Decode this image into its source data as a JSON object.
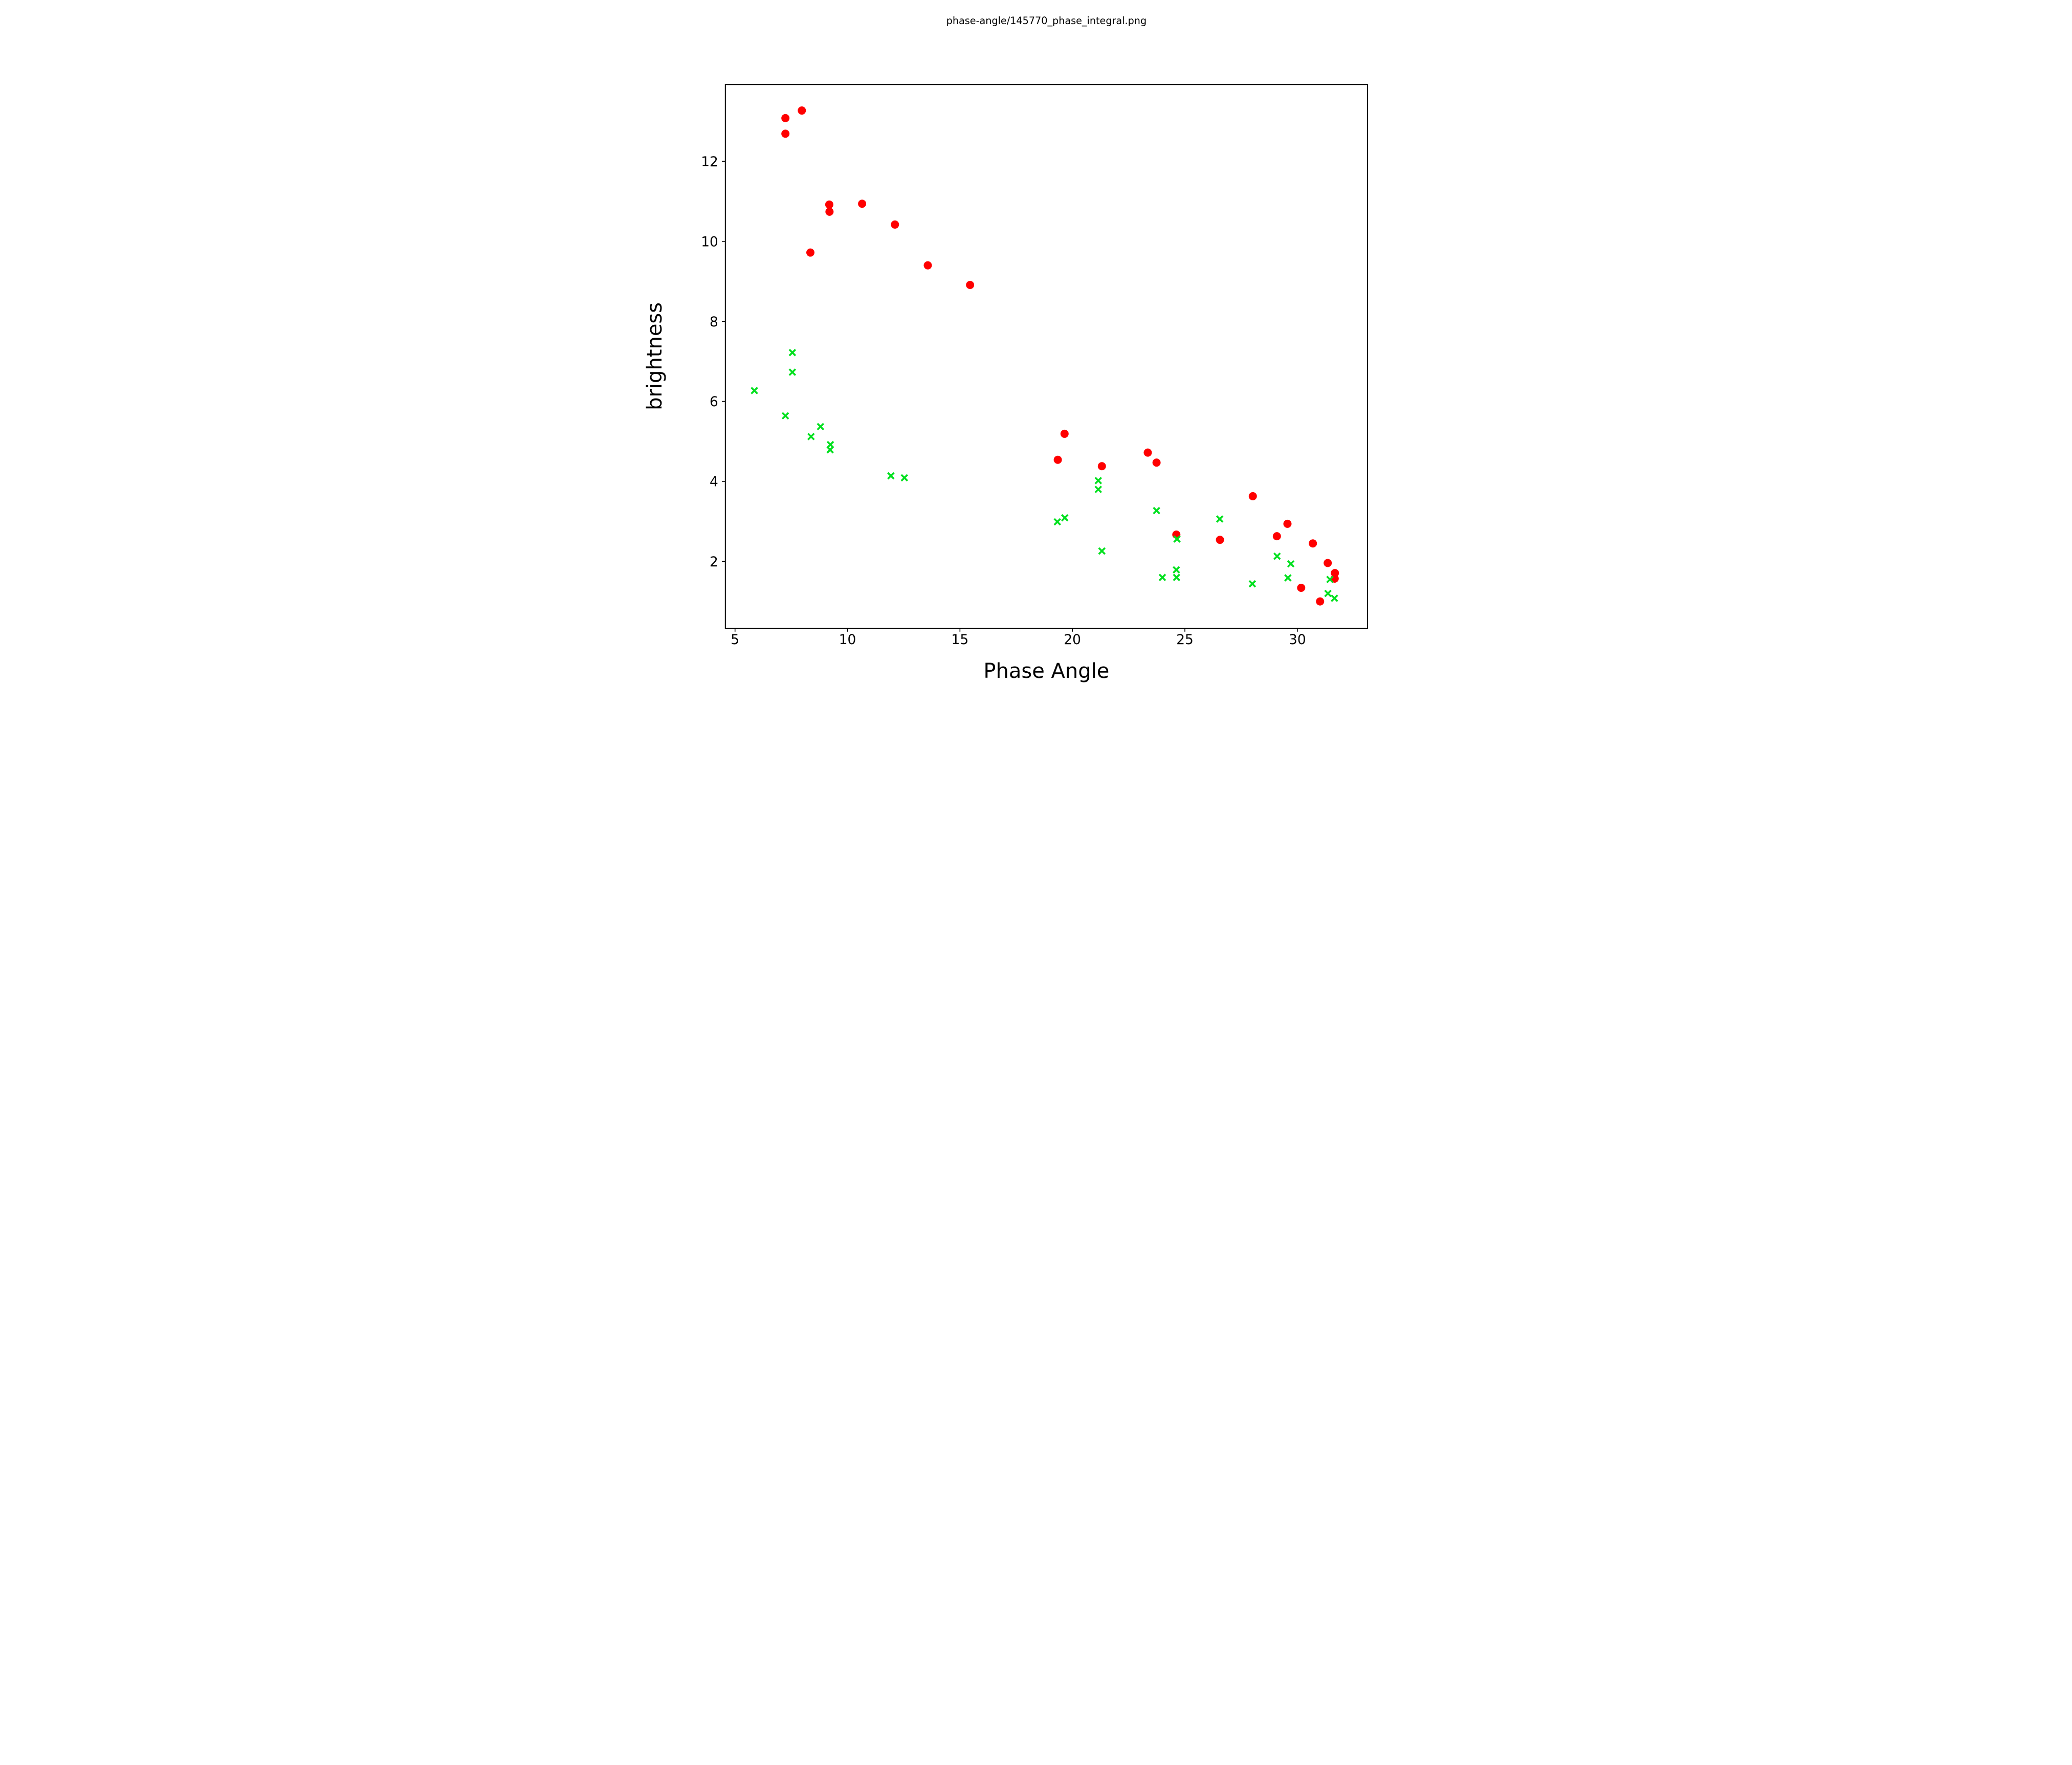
{
  "figure": {
    "title": "phase-angle/145770_phase_integral.png",
    "background_color": "#ffffff",
    "axis_color": "#000000"
  },
  "chart_data": {
    "type": "scatter",
    "title": "phase-angle/145770_phase_integral.png",
    "xlabel": "Phase Angle",
    "ylabel": "brightness",
    "xlim": [
      4.57,
      33.12
    ],
    "ylim": [
      0.33,
      13.92
    ],
    "x_ticks": [
      5,
      10,
      15,
      20,
      25,
      30
    ],
    "y_ticks": [
      2,
      4,
      6,
      8,
      10,
      12
    ],
    "grid": false,
    "legend_position": "none",
    "series": [
      {
        "name": "red-filled-circles",
        "marker": "circle",
        "color": "#ff0000",
        "points": [
          [
            7.24,
            13.08
          ],
          [
            7.24,
            12.69
          ],
          [
            7.97,
            13.27
          ],
          [
            8.35,
            9.72
          ],
          [
            9.19,
            10.92
          ],
          [
            9.2,
            10.74
          ],
          [
            10.65,
            10.94
          ],
          [
            12.11,
            10.42
          ],
          [
            13.57,
            9.4
          ],
          [
            15.45,
            8.91
          ],
          [
            19.65,
            5.19
          ],
          [
            19.35,
            4.54
          ],
          [
            21.31,
            4.38
          ],
          [
            23.35,
            4.72
          ],
          [
            23.74,
            4.47
          ],
          [
            24.62,
            2.67
          ],
          [
            26.56,
            2.54
          ],
          [
            28.02,
            3.63
          ],
          [
            29.56,
            2.94
          ],
          [
            29.09,
            2.63
          ],
          [
            30.69,
            2.45
          ],
          [
            31.35,
            1.96
          ],
          [
            31.67,
            1.71
          ],
          [
            31.66,
            1.57
          ],
          [
            30.17,
            1.34
          ],
          [
            31.01,
            1.0
          ]
        ]
      },
      {
        "name": "green-x-crosses",
        "marker": "x",
        "color": "#00e01e",
        "points": [
          [
            5.86,
            6.27
          ],
          [
            7.55,
            7.22
          ],
          [
            7.55,
            6.73
          ],
          [
            7.24,
            5.64
          ],
          [
            8.8,
            5.37
          ],
          [
            8.38,
            5.12
          ],
          [
            9.24,
            4.92
          ],
          [
            9.23,
            4.79
          ],
          [
            11.93,
            4.14
          ],
          [
            12.53,
            4.09
          ],
          [
            19.66,
            3.09
          ],
          [
            19.33,
            2.99
          ],
          [
            21.15,
            4.02
          ],
          [
            21.15,
            3.8
          ],
          [
            21.31,
            2.26
          ],
          [
            23.74,
            3.27
          ],
          [
            24.65,
            2.56
          ],
          [
            24.62,
            1.79
          ],
          [
            24.0,
            1.6
          ],
          [
            24.63,
            1.6
          ],
          [
            26.55,
            3.06
          ],
          [
            28.0,
            1.44
          ],
          [
            29.1,
            2.13
          ],
          [
            29.71,
            1.94
          ],
          [
            29.58,
            1.59
          ],
          [
            31.45,
            1.55
          ],
          [
            31.36,
            1.2
          ],
          [
            31.65,
            1.08
          ]
        ]
      }
    ]
  }
}
